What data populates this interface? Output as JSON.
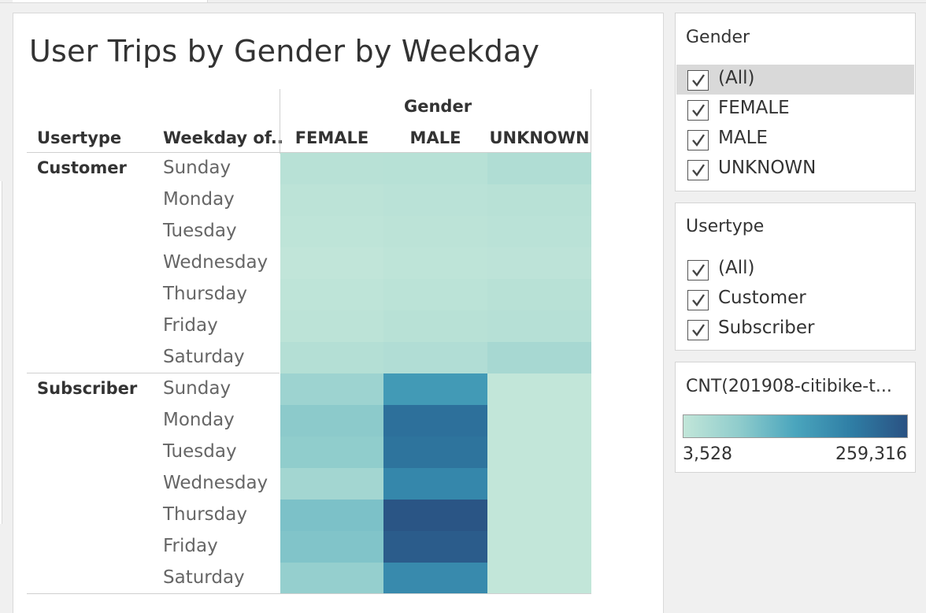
{
  "title": "User Trips by Gender by Weekday",
  "headers": {
    "gender": "Gender",
    "usertype": "Usertype",
    "weekday": "Weekday of..",
    "columns": [
      "FEMALE",
      "MALE",
      "UNKNOWN"
    ]
  },
  "chart_data": {
    "type": "heatmap",
    "title": "User Trips by Gender by Weekday",
    "column_field": "Gender",
    "row_fields": [
      "Usertype",
      "Weekday of.."
    ],
    "columns": [
      "FEMALE",
      "MALE",
      "UNKNOWN"
    ],
    "rows": [
      {
        "usertype": "Customer",
        "days": [
          "Sunday",
          "Monday",
          "Tuesday",
          "Wednesday",
          "Thursday",
          "Friday",
          "Saturday"
        ],
        "values": [
          [
            16000,
            17000,
            26000
          ],
          [
            11000,
            14000,
            16000
          ],
          [
            8000,
            11000,
            13000
          ],
          [
            5000,
            8000,
            10000
          ],
          [
            8000,
            12000,
            16000
          ],
          [
            11000,
            16000,
            19000
          ],
          [
            21000,
            25000,
            37000
          ]
        ]
      },
      {
        "usertype": "Subscriber",
        "days": [
          "Sunday",
          "Monday",
          "Tuesday",
          "Wednesday",
          "Thursday",
          "Friday",
          "Saturday"
        ],
        "values": [
          [
            50000,
            150000,
            4000
          ],
          [
            70000,
            215000,
            4000
          ],
          [
            66000,
            210000,
            4000
          ],
          [
            42000,
            180000,
            4000
          ],
          [
            85000,
            255000,
            4000
          ],
          [
            80000,
            245000,
            4000
          ],
          [
            60000,
            175000,
            4000
          ]
        ]
      }
    ],
    "color_range": [
      3528,
      259316
    ],
    "color_stops": [
      "#c2e6d9",
      "#8fcccc",
      "#4aa5bd",
      "#2f7ea5",
      "#2a5283"
    ]
  },
  "filters": {
    "gender": {
      "title": "Gender",
      "items": [
        {
          "label": "(All)",
          "checked": true,
          "selected": true
        },
        {
          "label": "FEMALE",
          "checked": true,
          "selected": false
        },
        {
          "label": "MALE",
          "checked": true,
          "selected": false
        },
        {
          "label": "UNKNOWN",
          "checked": true,
          "selected": false
        }
      ]
    },
    "usertype": {
      "title": "Usertype",
      "items": [
        {
          "label": "(All)",
          "checked": true,
          "selected": false
        },
        {
          "label": "Customer",
          "checked": true,
          "selected": false
        },
        {
          "label": "Subscriber",
          "checked": true,
          "selected": false
        }
      ]
    }
  },
  "legend": {
    "title": "CNT(201908-citibike-t...",
    "min_label": "3,528",
    "max_label": "259,316"
  }
}
